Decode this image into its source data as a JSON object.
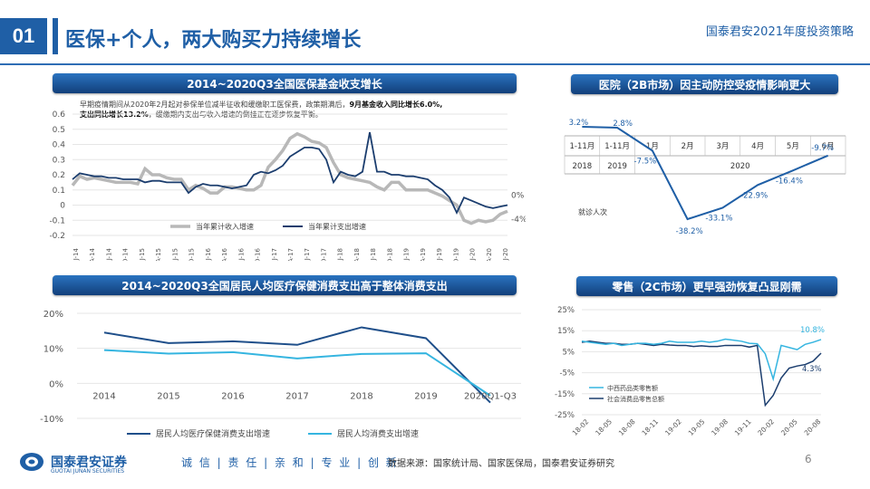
{
  "header": {
    "page_number": "01",
    "title": "医保+个人，两大购买力持续增长",
    "strategy": "国泰君安2021年度投资策略"
  },
  "chart1": {
    "title": "2014~2020Q3全国医保基金收支增长",
    "annotation_line1": "早期疫情期间从2020年2月起对参保单位减半征收和缓缴职工医保费，政策期满后，",
    "annotation_bold1": "9月基金收入同比增长6.0%,",
    "annotation_line2_bold": "支出同比增长13.2%",
    "annotation_line2": "，缓缴期内支出与收入增速的倒挂正在逐步恢复平衡。",
    "y_ticks": [
      "0.6",
      "0.5",
      "0.4",
      "0.3",
      "0.2",
      "0.1",
      "0",
      "-0.1",
      "-0.2"
    ],
    "x_ticks": [
      "J-14",
      "A-14",
      "J-14",
      "O-14",
      "J-15",
      "A-15",
      "J-15",
      "O-15",
      "J-16",
      "A-16",
      "J-16",
      "O-16",
      "J-17",
      "A-17",
      "J-17",
      "O-17",
      "J-18",
      "A-18",
      "J-18",
      "O-18",
      "J-19",
      "A-19",
      "J-19",
      "O-19",
      "J-20",
      "A-20",
      "J-20"
    ],
    "end_label_expense": "0%",
    "end_label_income": "-4%",
    "legend": [
      "当年累计收入增速",
      "当年累计支出增速"
    ],
    "colors": {
      "income": "#b8b8b8",
      "expense": "#1b3d6e"
    }
  },
  "chart2": {
    "title": "医院（2B市场）因主动防控受疫情影响更大",
    "months": [
      "1-11月",
      "1-11月",
      "1月",
      "2月",
      "3月",
      "4月",
      "5月",
      "6月"
    ],
    "years": [
      "2018",
      "2019",
      "2020"
    ],
    "label_text": "就诊人次",
    "colors": {
      "line": "#1f5fa6"
    }
  },
  "chart3": {
    "title": "2014~2020Q3全国居民人均医疗保健消费支出高于整体消费支出",
    "y_ticks": [
      "20%",
      "10%",
      "0%",
      "-10%"
    ],
    "legend": [
      "居民人均医疗保健消费支出增速",
      "居民人均消费支出增速"
    ],
    "colors": {
      "health": "#1f4f8a",
      "total": "#35b5e0"
    }
  },
  "chart4": {
    "title": "零售（2C市场）更早强劲恢复凸显刚需",
    "y_ticks": [
      "25%",
      "15%",
      "5%",
      "-5%",
      "-15%",
      "-25%"
    ],
    "x_ticks": [
      "18-02",
      "18-05",
      "18-08",
      "18-11",
      "19-02",
      "19-05",
      "19-08",
      "19-11",
      "20-02",
      "20-05",
      "20-08"
    ],
    "label_pharma": "10.8%",
    "label_retail": "4.3%",
    "legend": [
      "中西药品类零售额",
      "社会消费品零售总额"
    ],
    "colors": {
      "pharma": "#35b5e0",
      "retail": "#1b3d6e"
    }
  },
  "chart_data": [
    {
      "type": "line",
      "title": "2014~2020Q3全国医保基金收支增长",
      "ylim": [
        -0.2,
        0.6
      ],
      "series": [
        {
          "name": "当年累计收入增速",
          "values": [
            0.13,
            0.19,
            0.17,
            0.18,
            0.17,
            0.16,
            0.15,
            0.15,
            0.15,
            0.14,
            0.24,
            0.2,
            0.2,
            0.18,
            0.17,
            0.17,
            0.1,
            0.13,
            0.11,
            0.08,
            0.08,
            0.12,
            0.12,
            0.11,
            0.1,
            0.1,
            0.13,
            0.25,
            0.3,
            0.36,
            0.44,
            0.47,
            0.45,
            0.42,
            0.41,
            0.38,
            0.28,
            0.2,
            0.18,
            0.17,
            0.16,
            0.15,
            0.12,
            0.1,
            0.15,
            0.15,
            0.1,
            0.1,
            0.1,
            0.1,
            0.08,
            0.06,
            0.03,
            0.0,
            -0.1,
            -0.12,
            -0.1,
            -0.11,
            -0.1,
            -0.06,
            -0.04
          ]
        },
        {
          "name": "当年累计支出增速",
          "values": [
            0.17,
            0.21,
            0.2,
            0.19,
            0.19,
            0.18,
            0.18,
            0.17,
            0.17,
            0.17,
            0.15,
            0.16,
            0.16,
            0.15,
            0.15,
            0.15,
            0.08,
            0.12,
            0.14,
            0.13,
            0.13,
            0.12,
            0.11,
            0.12,
            0.13,
            0.2,
            0.22,
            0.21,
            0.23,
            0.26,
            0.32,
            0.35,
            0.38,
            0.38,
            0.37,
            0.3,
            0.15,
            0.22,
            0.2,
            0.19,
            0.22,
            0.48,
            0.22,
            0.22,
            0.2,
            0.2,
            0.19,
            0.19,
            0.18,
            0.17,
            0.13,
            0.1,
            0.05,
            -0.05,
            0.05,
            0.03,
            0.01,
            -0.01,
            -0.02,
            -0.01,
            0.0
          ]
        }
      ]
    },
    {
      "type": "line",
      "title": "医院（2B市场）因主动防控受疫情影响更大",
      "categories": [
        "1-11月 2018",
        "1-11月 2019",
        "1月 2020",
        "2月",
        "3月",
        "4月",
        "5月",
        "6月"
      ],
      "series": [
        {
          "name": "就诊人次",
          "values": [
            3.2,
            2.8,
            -7.5,
            -38.2,
            -33.1,
            -22.9,
            -16.4,
            -9.7
          ]
        }
      ],
      "data_labels": [
        "3.2%",
        "2.8%",
        "-7.5%",
        "-38.2%",
        "-33.1%",
        "-22.9%",
        "-16.4%",
        "-9.7%"
      ]
    },
    {
      "type": "line",
      "title": "2014~2020Q3全国居民人均医疗保健消费支出高于整体消费支出",
      "categories": [
        "2014",
        "2015",
        "2016",
        "2017",
        "2018",
        "2019",
        "2020Q1-Q3"
      ],
      "ylim": [
        -10,
        20
      ],
      "series": [
        {
          "name": "居民人均医疗保健消费支出增速",
          "values": [
            14.5,
            11.5,
            12,
            11,
            16,
            12.9,
            -5.5
          ]
        },
        {
          "name": "居民人均消费支出增速",
          "values": [
            9.5,
            8.5,
            8.9,
            7.1,
            8.4,
            8.6,
            -3.5
          ]
        }
      ]
    },
    {
      "type": "line",
      "title": "零售（2C市场）更早强劲恢复凸显刚需",
      "ylim": [
        -25,
        25
      ],
      "series": [
        {
          "name": "中西药品类零售额",
          "values": [
            10,
            9.5,
            9,
            8.5,
            9,
            8,
            8.5,
            9,
            9,
            8.5,
            9,
            10,
            9.5,
            9.5,
            9.5,
            10,
            9.5,
            10,
            11,
            10.5,
            10,
            9,
            8.8,
            4,
            -8,
            8,
            7,
            6,
            8.5,
            9.5,
            10.8
          ]
        },
        {
          "name": "社会消费品零售总额",
          "values": [
            9.5,
            10,
            9.5,
            9,
            9,
            8.5,
            8.5,
            9,
            8.5,
            8,
            8.5,
            8.2,
            8,
            8,
            7.5,
            7.8,
            7.5,
            7.5,
            8,
            8,
            8,
            7.2,
            8,
            -20.5,
            -15.8,
            -7.5,
            -2.8,
            -1.8,
            -1.1,
            0.5,
            4.3
          ]
        }
      ],
      "data_labels": [
        "10.8%",
        "4.3%"
      ]
    }
  ],
  "footer": {
    "brand": "国泰君安证券",
    "brand_en": "GUOTAI JUNAN SECURITIES",
    "slogan": "诚 信 | 责 任 | 亲 和 | 专 业 | 创 新",
    "source": "数据来源：国家统计局、国家医保局，国泰君安证券研究",
    "page": "6"
  }
}
